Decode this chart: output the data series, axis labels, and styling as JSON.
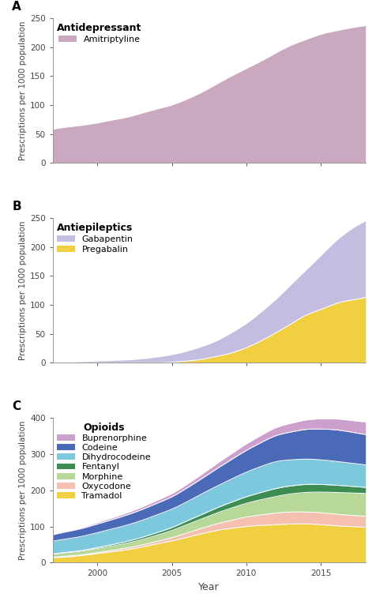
{
  "years": [
    1997,
    1998,
    1999,
    2000,
    2001,
    2002,
    2003,
    2004,
    2005,
    2006,
    2007,
    2008,
    2009,
    2010,
    2011,
    2012,
    2013,
    2014,
    2015,
    2016,
    2017,
    2018
  ],
  "panel_A": {
    "title": "Antidepressant",
    "ylabel": "Prescriptions per 1000 population",
    "ylim": [
      0,
      250
    ],
    "yticks": [
      0,
      50,
      100,
      150,
      200,
      250
    ],
    "label": "A",
    "series": {
      "Amitriptyline": {
        "color": "#c9a8c0",
        "values": [
          58,
          62,
          65,
          69,
          74,
          79,
          86,
          93,
          100,
          110,
          122,
          136,
          150,
          163,
          176,
          190,
          203,
          213,
          222,
          228,
          233,
          237
        ]
      }
    }
  },
  "panel_B": {
    "title": "Antiepileptics",
    "ylabel": "Prescriptions per 1000 population",
    "ylim": [
      0,
      250
    ],
    "yticks": [
      0,
      50,
      100,
      150,
      200,
      250
    ],
    "label": "B",
    "series": {
      "Gabapentin": {
        "color": "#c5bde0",
        "values": [
          1,
          1,
          2,
          3,
          4,
          5,
          7,
          10,
          14,
          20,
          28,
          38,
          52,
          68,
          88,
          110,
          135,
          160,
          185,
          210,
          230,
          245
        ]
      },
      "Pregabalin": {
        "color": "#f0d040",
        "values": [
          0,
          0,
          0,
          0,
          0,
          0,
          0,
          0,
          1,
          3,
          6,
          11,
          17,
          26,
          38,
          52,
          67,
          82,
          92,
          102,
          108,
          113
        ]
      }
    }
  },
  "panel_C": {
    "title": "Opioids",
    "ylabel": "Prescriptions per 1000 population",
    "ylim": [
      0,
      400
    ],
    "yticks": [
      0,
      100,
      200,
      300,
      400
    ],
    "label": "C",
    "series": {
      "Tramadol": {
        "color": "#f0d040",
        "values": [
          14,
          16,
          20,
          25,
          30,
          36,
          43,
          52,
          60,
          70,
          80,
          89,
          95,
          100,
          103,
          105,
          107,
          107,
          105,
          102,
          100,
          98
        ]
      },
      "Oxycodone": {
        "color": "#f5c0b0",
        "values": [
          1,
          2,
          2,
          3,
          4,
          5,
          6,
          7,
          9,
          12,
          15,
          18,
          22,
          26,
          29,
          32,
          33,
          33,
          33,
          32,
          31,
          30
        ]
      },
      "Morphine": {
        "color": "#b8d898",
        "values": [
          8,
          9,
          10,
          11,
          12,
          13,
          15,
          17,
          20,
          23,
          26,
          30,
          34,
          38,
          42,
          46,
          50,
          54,
          57,
          60,
          62,
          63
        ]
      },
      "Fentanyl": {
        "color": "#3d8c52",
        "values": [
          1,
          2,
          2,
          3,
          4,
          5,
          6,
          7,
          8,
          10,
          12,
          14,
          16,
          18,
          20,
          22,
          22,
          22,
          21,
          20,
          18,
          17
        ]
      },
      "Dihydrocodeine": {
        "color": "#7cc8dc",
        "values": [
          35,
          37,
          39,
          41,
          43,
          45,
          47,
          49,
          51,
          53,
          57,
          60,
          64,
          68,
          72,
          74,
          72,
          70,
          68,
          66,
          64,
          62
        ]
      },
      "Codeine": {
        "color": "#4a6ab8",
        "values": [
          18,
          20,
          22,
          24,
          26,
          28,
          30,
          32,
          34,
          38,
          42,
          48,
          54,
          60,
          66,
          72,
          77,
          82,
          85,
          87,
          86,
          84
        ]
      },
      "Buprenorphine": {
        "color": "#cca0cc",
        "values": [
          2,
          2,
          3,
          4,
          5,
          6,
          7,
          8,
          9,
          10,
          12,
          14,
          16,
          18,
          20,
          22,
          24,
          26,
          28,
          30,
          32,
          35
        ]
      }
    },
    "order": [
      "Tramadol",
      "Oxycodone",
      "Morphine",
      "Fentanyl",
      "Dihydrocodeine",
      "Codeine",
      "Buprenorphine"
    ]
  },
  "xlabel": "Year",
  "xmin": 1997,
  "xmax": 2018,
  "xticks": [
    2000,
    2005,
    2010,
    2015
  ],
  "bg_color": "#ffffff",
  "spine_color": "#999999",
  "tick_color": "#444444",
  "label_fontsize": 9,
  "title_fontsize": 9,
  "legend_fontsize": 8,
  "axis_label_fontsize": 7.5
}
